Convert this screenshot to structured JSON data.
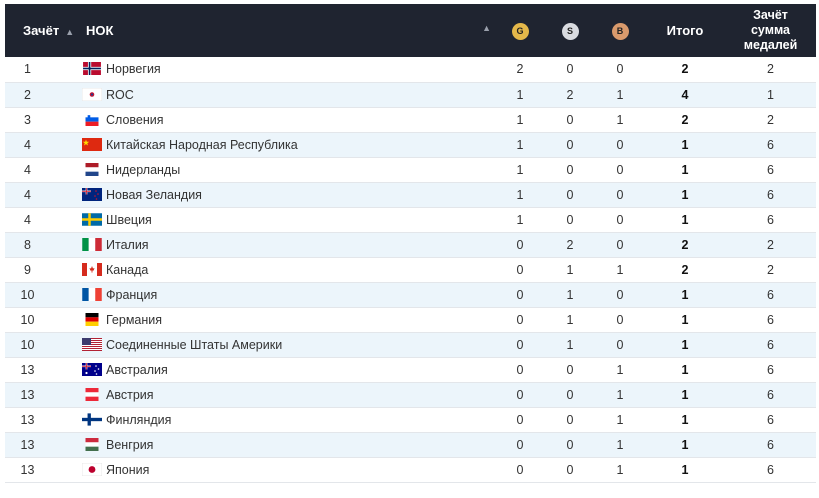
{
  "header": {
    "rank": "Зачёт",
    "noc": "НОК",
    "gold": "G",
    "silver": "S",
    "bronze": "B",
    "total": "Итого",
    "sum_line1": "Зачёт",
    "sum_line2": "сумма",
    "sum_line3": "медалей"
  },
  "rows": [
    {
      "rank": "1",
      "country": "Норвегия",
      "flag": "norway-flag-icon",
      "g": "2",
      "s": "0",
      "b": "0",
      "total": "2",
      "sum": "2"
    },
    {
      "rank": "2",
      "country": "ROC",
      "flag": "roc-flag-icon",
      "g": "1",
      "s": "2",
      "b": "1",
      "total": "4",
      "sum": "1"
    },
    {
      "rank": "3",
      "country": "Словения",
      "flag": "slovenia-flag-icon",
      "g": "1",
      "s": "0",
      "b": "1",
      "total": "2",
      "sum": "2"
    },
    {
      "rank": "4",
      "country": "Китайская Народная Республика",
      "flag": "china-flag-icon",
      "g": "1",
      "s": "0",
      "b": "0",
      "total": "1",
      "sum": "6"
    },
    {
      "rank": "4",
      "country": "Нидерланды",
      "flag": "netherlands-flag-icon",
      "g": "1",
      "s": "0",
      "b": "0",
      "total": "1",
      "sum": "6"
    },
    {
      "rank": "4",
      "country": "Новая Зеландия",
      "flag": "new-zealand-flag-icon",
      "g": "1",
      "s": "0",
      "b": "0",
      "total": "1",
      "sum": "6"
    },
    {
      "rank": "4",
      "country": "Швеция",
      "flag": "sweden-flag-icon",
      "g": "1",
      "s": "0",
      "b": "0",
      "total": "1",
      "sum": "6"
    },
    {
      "rank": "8",
      "country": "Италия",
      "flag": "italy-flag-icon",
      "g": "0",
      "s": "2",
      "b": "0",
      "total": "2",
      "sum": "2"
    },
    {
      "rank": "9",
      "country": "Канада",
      "flag": "canada-flag-icon",
      "g": "0",
      "s": "1",
      "b": "1",
      "total": "2",
      "sum": "2"
    },
    {
      "rank": "10",
      "country": "Франция",
      "flag": "france-flag-icon",
      "g": "0",
      "s": "1",
      "b": "0",
      "total": "1",
      "sum": "6"
    },
    {
      "rank": "10",
      "country": "Германия",
      "flag": "germany-flag-icon",
      "g": "0",
      "s": "1",
      "b": "0",
      "total": "1",
      "sum": "6"
    },
    {
      "rank": "10",
      "country": "Соединенные Штаты Америки",
      "flag": "usa-flag-icon",
      "g": "0",
      "s": "1",
      "b": "0",
      "total": "1",
      "sum": "6"
    },
    {
      "rank": "13",
      "country": "Австралия",
      "flag": "australia-flag-icon",
      "g": "0",
      "s": "0",
      "b": "1",
      "total": "1",
      "sum": "6"
    },
    {
      "rank": "13",
      "country": "Австрия",
      "flag": "austria-flag-icon",
      "g": "0",
      "s": "0",
      "b": "1",
      "total": "1",
      "sum": "6"
    },
    {
      "rank": "13",
      "country": "Финляндия",
      "flag": "finland-flag-icon",
      "g": "0",
      "s": "0",
      "b": "1",
      "total": "1",
      "sum": "6"
    },
    {
      "rank": "13",
      "country": "Венгрия",
      "flag": "hungary-flag-icon",
      "g": "0",
      "s": "0",
      "b": "1",
      "total": "1",
      "sum": "6"
    },
    {
      "rank": "13",
      "country": "Япония",
      "flag": "japan-flag-icon",
      "g": "0",
      "s": "0",
      "b": "1",
      "total": "1",
      "sum": "6"
    }
  ],
  "colors": {
    "header_bg": "#1f2430",
    "row_alt": "#ecf5fb",
    "gold": "#e4b84a",
    "silver": "#d9dbe0",
    "bronze": "#d99a6c"
  }
}
